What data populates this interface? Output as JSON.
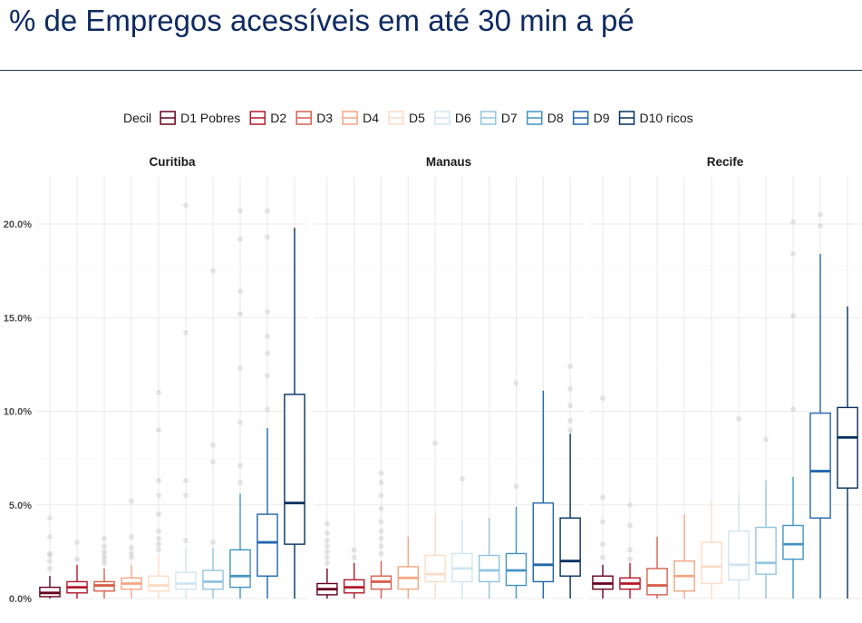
{
  "page": {
    "title": "% de Empregos acessíveis em até 30 min a pé"
  },
  "chart_data": {
    "type": "boxplot",
    "facet_by": "city",
    "x_axis": "none",
    "ylim": [
      0,
      22.5
    ],
    "y_ticks": [
      0,
      5,
      10,
      15,
      20
    ],
    "y_tick_labels": [
      "0.0%",
      "5.0%",
      "10.0%",
      "15.0%",
      "20.0%"
    ],
    "grid": true,
    "legend": {
      "title": "Decil",
      "position": "top"
    },
    "series": [
      {
        "name": "D1 Pobres",
        "color": "#67001f"
      },
      {
        "name": "D2",
        "color": "#b2182b"
      },
      {
        "name": "D3",
        "color": "#d6604d"
      },
      {
        "name": "D4",
        "color": "#f4a582"
      },
      {
        "name": "D5",
        "color": "#fddbc7"
      },
      {
        "name": "D6",
        "color": "#d1e5f0"
      },
      {
        "name": "D7",
        "color": "#92c5de"
      },
      {
        "name": "D8",
        "color": "#4393c3"
      },
      {
        "name": "D9",
        "color": "#2166ac"
      },
      {
        "name": "D10 ricos",
        "color": "#053061"
      }
    ],
    "panels": [
      {
        "name": "Curitiba",
        "boxes": [
          {
            "min": 0.0,
            "q1": 0.1,
            "median": 0.3,
            "q3": 0.6,
            "max": 1.2,
            "outliers": [
              1.6,
              2.0,
              2.3,
              2.4,
              3.3,
              4.3
            ]
          },
          {
            "min": 0.0,
            "q1": 0.3,
            "median": 0.6,
            "q3": 0.9,
            "max": 1.8,
            "outliers": [
              2.1,
              3.0
            ]
          },
          {
            "min": 0.0,
            "q1": 0.4,
            "median": 0.7,
            "q3": 0.9,
            "max": 1.6,
            "outliers": [
              1.9,
              2.1,
              2.3,
              2.5,
              2.8,
              3.2
            ]
          },
          {
            "min": 0.0,
            "q1": 0.5,
            "median": 0.8,
            "q3": 1.1,
            "max": 1.8,
            "outliers": [
              2.2,
              2.4,
              2.7,
              3.3,
              5.2
            ]
          },
          {
            "min": 0.0,
            "q1": 0.4,
            "median": 0.7,
            "q3": 1.2,
            "max": 2.3,
            "outliers": [
              2.6,
              2.9,
              3.2,
              3.6,
              4.5,
              5.5,
              6.3,
              9.0,
              11.0
            ]
          },
          {
            "min": 0.0,
            "q1": 0.5,
            "median": 0.8,
            "q3": 1.4,
            "max": 2.7,
            "outliers": [
              3.1,
              5.5,
              6.3,
              14.2,
              21.0
            ]
          },
          {
            "min": 0.0,
            "q1": 0.5,
            "median": 0.9,
            "q3": 1.5,
            "max": 2.7,
            "outliers": [
              3.0,
              7.3,
              8.2,
              17.5
            ]
          },
          {
            "min": 0.0,
            "q1": 0.6,
            "median": 1.2,
            "q3": 2.6,
            "max": 5.6,
            "outliers": [
              6.2,
              7.1,
              9.4,
              12.3,
              15.2,
              16.4,
              19.2,
              20.7
            ]
          },
          {
            "min": 0.0,
            "q1": 1.2,
            "median": 3.0,
            "q3": 4.5,
            "max": 9.1,
            "outliers": [
              10.1,
              11.9,
              13.1,
              14.0,
              15.3,
              19.3,
              20.7
            ]
          },
          {
            "min": 0.0,
            "q1": 2.9,
            "median": 5.1,
            "q3": 10.9,
            "max": 19.8,
            "outliers": []
          }
        ]
      },
      {
        "name": "Manaus",
        "boxes": [
          {
            "min": 0.0,
            "q1": 0.2,
            "median": 0.5,
            "q3": 0.8,
            "max": 1.6,
            "outliers": [
              1.9,
              2.2,
              2.5,
              2.8,
              3.1,
              3.5,
              4.0
            ]
          },
          {
            "min": 0.0,
            "q1": 0.3,
            "median": 0.6,
            "q3": 1.0,
            "max": 1.9,
            "outliers": [
              2.2,
              2.6
            ]
          },
          {
            "min": 0.0,
            "q1": 0.5,
            "median": 0.9,
            "q3": 1.2,
            "max": 2.0,
            "outliers": [
              2.4,
              2.8,
              3.2,
              3.6,
              4.1,
              4.8,
              5.5,
              6.2,
              6.7
            ]
          },
          {
            "min": 0.0,
            "q1": 0.5,
            "median": 1.1,
            "q3": 1.7,
            "max": 3.3,
            "outliers": []
          },
          {
            "min": 0.0,
            "q1": 0.9,
            "median": 1.3,
            "q3": 2.3,
            "max": 4.5,
            "outliers": [
              8.3
            ]
          },
          {
            "min": 0.0,
            "q1": 0.9,
            "median": 1.6,
            "q3": 2.4,
            "max": 4.2,
            "outliers": [
              6.4
            ]
          },
          {
            "min": 0.0,
            "q1": 0.9,
            "median": 1.5,
            "q3": 2.3,
            "max": 4.3,
            "outliers": []
          },
          {
            "min": 0.0,
            "q1": 0.7,
            "median": 1.5,
            "q3": 2.4,
            "max": 4.9,
            "outliers": [
              6.0,
              11.5
            ]
          },
          {
            "min": 0.0,
            "q1": 0.9,
            "median": 1.8,
            "q3": 5.1,
            "max": 11.1,
            "outliers": []
          },
          {
            "min": 0.0,
            "q1": 1.2,
            "median": 2.0,
            "q3": 4.3,
            "max": 8.8,
            "outliers": [
              9.0,
              9.5,
              10.3,
              11.2,
              12.4
            ]
          }
        ]
      },
      {
        "name": "Recife",
        "boxes": [
          {
            "min": 0.0,
            "q1": 0.5,
            "median": 0.8,
            "q3": 1.2,
            "max": 1.8,
            "outliers": [
              2.2,
              2.9,
              4.1,
              5.4,
              10.7
            ]
          },
          {
            "min": 0.0,
            "q1": 0.5,
            "median": 0.8,
            "q3": 1.1,
            "max": 1.9,
            "outliers": [
              2.1,
              2.6,
              3.9,
              5.0
            ]
          },
          {
            "min": 0.0,
            "q1": 0.2,
            "median": 0.7,
            "q3": 1.6,
            "max": 3.3,
            "outliers": []
          },
          {
            "min": 0.0,
            "q1": 0.4,
            "median": 1.2,
            "q3": 2.0,
            "max": 4.5,
            "outliers": []
          },
          {
            "min": 0.0,
            "q1": 0.8,
            "median": 1.7,
            "q3": 3.0,
            "max": 5.2,
            "outliers": []
          },
          {
            "min": 0.0,
            "q1": 1.0,
            "median": 1.8,
            "q3": 3.6,
            "max": 5.6,
            "outliers": [
              9.6
            ]
          },
          {
            "min": 0.0,
            "q1": 1.3,
            "median": 1.9,
            "q3": 3.8,
            "max": 6.3,
            "outliers": [
              8.5
            ]
          },
          {
            "min": 0.0,
            "q1": 2.1,
            "median": 2.9,
            "q3": 3.9,
            "max": 6.5,
            "outliers": [
              10.1,
              15.1,
              18.4,
              20.1
            ]
          },
          {
            "min": 0.0,
            "q1": 4.3,
            "median": 6.8,
            "q3": 9.9,
            "max": 18.4,
            "outliers": [
              19.9,
              20.5
            ]
          },
          {
            "min": 0.0,
            "q1": 5.9,
            "median": 8.6,
            "q3": 10.2,
            "max": 15.6,
            "outliers": []
          }
        ]
      }
    ]
  }
}
